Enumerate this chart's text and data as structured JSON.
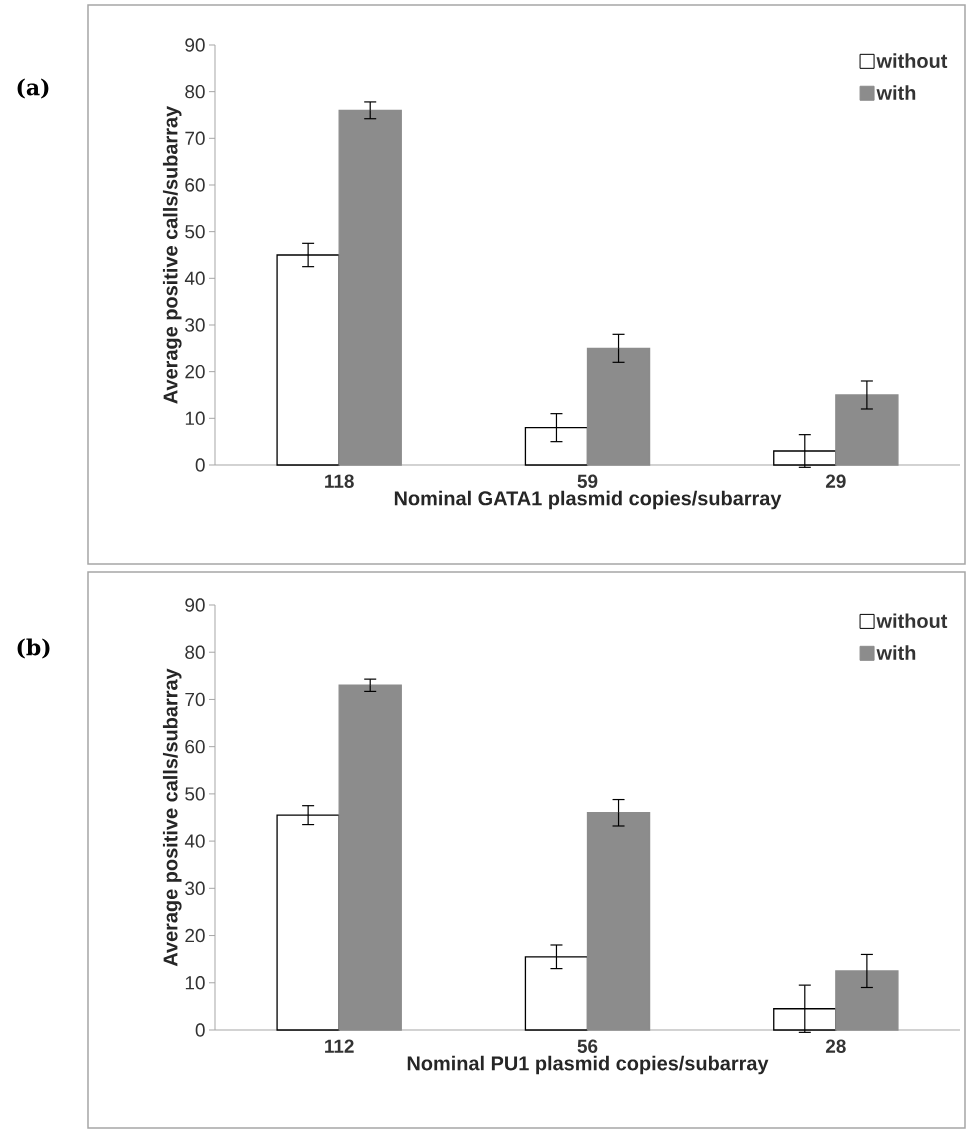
{
  "chart_data": [
    {
      "type": "bar",
      "categories": [
        "118",
        "59",
        "29"
      ],
      "xlabel": "Nominal GATA1 plasmid copies/subarray",
      "ylabel": "Average positive calls/subarray",
      "annotations": [
        "(a)"
      ],
      "series": [
        {
          "name": "without",
          "color": "#ffffff",
          "values": [
            45,
            8,
            3
          ],
          "errors": [
            2.5,
            3,
            3.5
          ]
        },
        {
          "name": "with",
          "color": "#8c8c8c",
          "values": [
            76,
            25,
            15
          ],
          "errors": [
            1.8,
            3,
            3
          ]
        }
      ],
      "ylim": [
        0,
        90
      ],
      "yticks": [
        0,
        10,
        20,
        30,
        40,
        50,
        60,
        70,
        80,
        90
      ],
      "legend": "top right"
    },
    {
      "type": "bar",
      "categories": [
        "112",
        "56",
        "28"
      ],
      "xlabel": "Nominal PU1 plasmid copies/subarray",
      "ylabel": "Average positive calls/subarray",
      "annotations": [
        "(b)"
      ],
      "series": [
        {
          "name": "without",
          "color": "#ffffff",
          "values": [
            45.5,
            15.5,
            4.5
          ],
          "errors": [
            2,
            2.5,
            5
          ]
        },
        {
          "name": "with",
          "color": "#8c8c8c",
          "values": [
            73,
            46,
            12.5
          ],
          "errors": [
            1.3,
            2.8,
            3.5
          ]
        }
      ],
      "ylim": [
        0,
        90
      ],
      "yticks": [
        0,
        10,
        20,
        30,
        40,
        50,
        60,
        70,
        80,
        90
      ],
      "legend": "top right"
    }
  ]
}
